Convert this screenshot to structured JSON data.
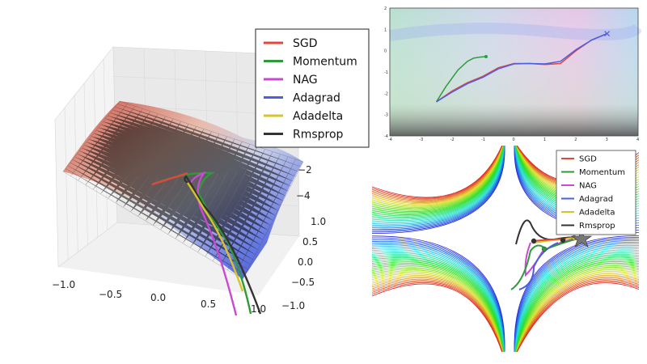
{
  "colors": {
    "SGD": "#e0493a",
    "Momentum": "#2f9a3a",
    "NAG": "#c94ad1",
    "Adagrad": "#4a5ee6",
    "Adadelta": "#d8c42a",
    "Rmsprop": "#333333"
  },
  "chart_data": [
    {
      "type": "surface",
      "legend_position": "top-right",
      "series": [
        {
          "name": "SGD"
        },
        {
          "name": "Momentum"
        },
        {
          "name": "NAG"
        },
        {
          "name": "Adagrad"
        },
        {
          "name": "Adadelta"
        },
        {
          "name": "Rmsprop"
        }
      ],
      "x_ticks": [
        "−1.0",
        "−0.5",
        "0.0",
        "0.5",
        "1.0"
      ],
      "y_ticks": [
        "1.0",
        "0.5",
        "0.0",
        "−0.5",
        "−1.0"
      ],
      "z_ticks": [
        "0",
        "−2",
        "−4"
      ],
      "xlim": [
        -1.0,
        1.0
      ],
      "ylim": [
        -1.0,
        1.0
      ],
      "zlim": [
        -4,
        0
      ],
      "grid": true
    },
    {
      "type": "line",
      "x_ticks": [
        "-4",
        "-3",
        "-2",
        "-1",
        "0",
        "1",
        "2",
        "3",
        "4"
      ],
      "y_ticks": [
        "2",
        "1",
        "0",
        "-1",
        "-2",
        "-3",
        "-4"
      ],
      "xlim": [
        -4,
        4
      ],
      "ylim": [
        -4,
        2
      ],
      "series": [
        {
          "x": [
            -2.5,
            -2.0,
            -1.5,
            -1.0,
            -0.5,
            0.0,
            0.5,
            1.0,
            1.5,
            2.0,
            2.5,
            3.0
          ],
          "y": [
            -2.4,
            -1.9,
            -1.5,
            -1.2,
            -0.8,
            -0.6,
            -0.6,
            -0.65,
            -0.6,
            0.0,
            0.5,
            0.8
          ]
        },
        {
          "x": [
            -2.5,
            -2.2,
            -1.8,
            -1.5,
            -1.3,
            -1.1,
            -0.9
          ],
          "y": [
            -2.4,
            -1.7,
            -0.9,
            -0.5,
            -0.35,
            -0.3,
            -0.28
          ]
        },
        {
          "x": [
            -2.5,
            -2.0,
            -1.5,
            -1.0,
            -0.5,
            0.0,
            0.5,
            1.0,
            1.5,
            2.0,
            2.5,
            3.0
          ],
          "y": [
            -2.4,
            -1.95,
            -1.55,
            -1.25,
            -0.85,
            -0.62,
            -0.6,
            -0.62,
            -0.5,
            0.05,
            0.5,
            0.8
          ]
        }
      ]
    },
    {
      "type": "contour",
      "legend_position": "top-right",
      "series": [
        {
          "name": "SGD"
        },
        {
          "name": "Momentum"
        },
        {
          "name": "NAG"
        },
        {
          "name": "Adagrad"
        },
        {
          "name": "Adadelta"
        },
        {
          "name": "Rmsprop"
        }
      ]
    }
  ]
}
